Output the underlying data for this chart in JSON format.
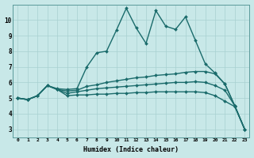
{
  "xlabel": "Humidex (Indice chaleur)",
  "background_color": "#c8e8e8",
  "grid_color": "#a8d0d0",
  "line_color": "#1a6b6b",
  "xlim": [
    -0.5,
    23.5
  ],
  "ylim": [
    2.5,
    11.0
  ],
  "xticks": [
    0,
    1,
    2,
    3,
    4,
    5,
    6,
    7,
    8,
    9,
    10,
    11,
    12,
    13,
    14,
    15,
    16,
    17,
    18,
    19,
    20,
    21,
    22,
    23
  ],
  "yticks": [
    3,
    4,
    5,
    6,
    7,
    8,
    9,
    10
  ],
  "series": [
    [
      5.0,
      4.9,
      5.15,
      5.8,
      5.6,
      5.55,
      5.6,
      7.0,
      7.9,
      8.0,
      9.35,
      10.75,
      9.5,
      8.5,
      10.6,
      9.6,
      9.4,
      10.2,
      8.7,
      7.2,
      6.6,
      5.9,
      4.5,
      3.0
    ],
    [
      5.0,
      4.9,
      5.15,
      5.8,
      5.55,
      5.45,
      5.5,
      5.75,
      5.85,
      6.0,
      6.1,
      6.2,
      6.3,
      6.35,
      6.45,
      6.5,
      6.55,
      6.65,
      6.7,
      6.7,
      6.55,
      5.9,
      4.5,
      3.0
    ],
    [
      5.0,
      4.9,
      5.15,
      5.8,
      5.55,
      5.3,
      5.4,
      5.5,
      5.6,
      5.65,
      5.7,
      5.75,
      5.8,
      5.85,
      5.9,
      5.95,
      6.0,
      6.0,
      6.05,
      6.0,
      5.8,
      5.5,
      4.5,
      3.0
    ],
    [
      5.0,
      4.9,
      5.15,
      5.8,
      5.55,
      5.15,
      5.2,
      5.2,
      5.25,
      5.25,
      5.3,
      5.3,
      5.35,
      5.35,
      5.4,
      5.4,
      5.4,
      5.4,
      5.4,
      5.35,
      5.15,
      4.8,
      4.45,
      3.0
    ]
  ]
}
